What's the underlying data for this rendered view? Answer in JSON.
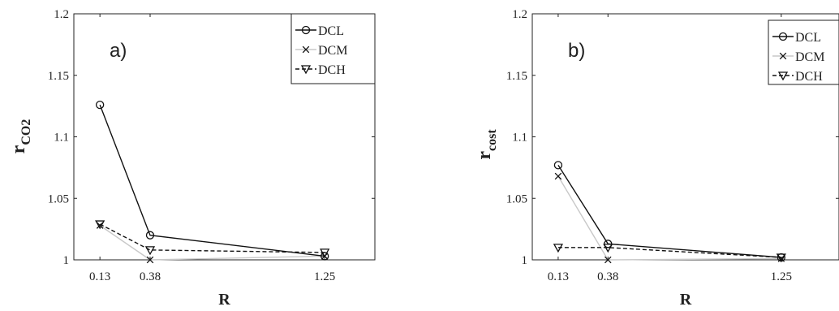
{
  "chart_data": [
    {
      "type": "line",
      "panel_label": "a)",
      "xlabel": "R",
      "ylabel_main": "r",
      "ylabel_sub": "CO2",
      "x": [
        0.13,
        0.38,
        1.25
      ],
      "x_tick_labels": [
        "0.13",
        "0.38",
        "1.25"
      ],
      "ylim": [
        1,
        1.2
      ],
      "y_ticks": [
        1,
        1.05,
        1.1,
        1.15,
        1.2
      ],
      "y_tick_labels": [
        "1",
        "1.05",
        "1.1",
        "1.15",
        "1.2"
      ],
      "legend_position": "top-right",
      "grid": false,
      "series": [
        {
          "name": "DCL",
          "values": [
            1.126,
            1.02,
            1.003
          ],
          "color": "#111111",
          "dash": "solid",
          "marker": "circle"
        },
        {
          "name": "DCM",
          "values": [
            1.028,
            1.0,
            1.003
          ],
          "color": "#c8c8c8",
          "dash": "solid",
          "marker": "x"
        },
        {
          "name": "DCH",
          "values": [
            1.029,
            1.008,
            1.006
          ],
          "color": "#111111",
          "dash": "dashed",
          "marker": "triangle-down"
        }
      ]
    },
    {
      "type": "line",
      "panel_label": "b)",
      "xlabel": "R",
      "ylabel_main": "r",
      "ylabel_sub": "cost",
      "x": [
        0.13,
        0.38,
        1.25
      ],
      "x_tick_labels": [
        "0.13",
        "0.38",
        "1.25"
      ],
      "ylim": [
        1,
        1.2
      ],
      "y_ticks": [
        1,
        1.05,
        1.1,
        1.15,
        1.2
      ],
      "y_tick_labels": [
        "1",
        "1.05",
        "1.1",
        "1.15",
        "1.2"
      ],
      "legend_position": "top-right",
      "grid": false,
      "series": [
        {
          "name": "DCL",
          "values": [
            1.077,
            1.013,
            1.002
          ],
          "color": "#111111",
          "dash": "solid",
          "marker": "circle"
        },
        {
          "name": "DCM",
          "values": [
            1.068,
            1.0,
            1.001
          ],
          "color": "#c8c8c8",
          "dash": "solid",
          "marker": "x"
        },
        {
          "name": "DCH",
          "values": [
            1.01,
            1.01,
            1.002
          ],
          "color": "#111111",
          "dash": "dashed",
          "marker": "triangle-down"
        }
      ]
    }
  ]
}
